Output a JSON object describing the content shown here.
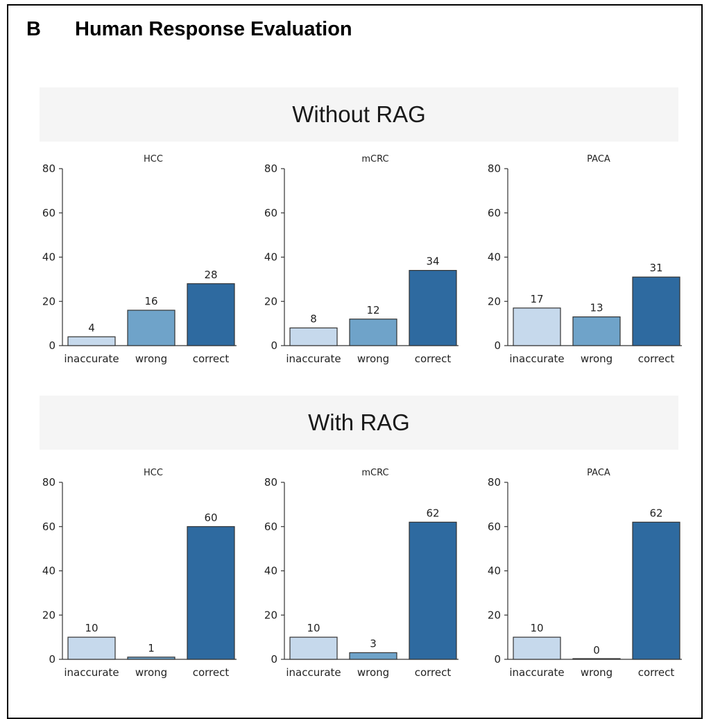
{
  "panel": {
    "letter": "B",
    "title": "Human Response Evaluation"
  },
  "sections": [
    {
      "label": "Without RAG"
    },
    {
      "label": "With RAG"
    }
  ],
  "colors": {
    "inaccurate": "#c6d9ec",
    "wrong": "#6fa3c9",
    "correct": "#2e6aa0",
    "band": "#f5f5f5"
  },
  "chart_data": [
    {
      "type": "bar",
      "section": "Without RAG",
      "title": "HCC",
      "categories": [
        "inaccurate",
        "wrong",
        "correct"
      ],
      "values": [
        4,
        16,
        28
      ],
      "ylim": [
        0,
        80
      ],
      "yticks": [
        0,
        20,
        40,
        60,
        80
      ]
    },
    {
      "type": "bar",
      "section": "Without RAG",
      "title": "mCRC",
      "categories": [
        "inaccurate",
        "wrong",
        "correct"
      ],
      "values": [
        8,
        12,
        34
      ],
      "ylim": [
        0,
        80
      ],
      "yticks": [
        0,
        20,
        40,
        60,
        80
      ]
    },
    {
      "type": "bar",
      "section": "Without RAG",
      "title": "PACA",
      "categories": [
        "inaccurate",
        "wrong",
        "correct"
      ],
      "values": [
        17,
        13,
        31
      ],
      "ylim": [
        0,
        80
      ],
      "yticks": [
        0,
        20,
        40,
        60,
        80
      ]
    },
    {
      "type": "bar",
      "section": "With RAG",
      "title": "HCC",
      "categories": [
        "inaccurate",
        "wrong",
        "correct"
      ],
      "values": [
        10,
        1,
        60
      ],
      "ylim": [
        0,
        80
      ],
      "yticks": [
        0,
        20,
        40,
        60,
        80
      ]
    },
    {
      "type": "bar",
      "section": "With RAG",
      "title": "mCRC",
      "categories": [
        "inaccurate",
        "wrong",
        "correct"
      ],
      "values": [
        10,
        3,
        62
      ],
      "ylim": [
        0,
        80
      ],
      "yticks": [
        0,
        20,
        40,
        60,
        80
      ]
    },
    {
      "type": "bar",
      "section": "With RAG",
      "title": "PACA",
      "categories": [
        "inaccurate",
        "wrong",
        "correct"
      ],
      "values": [
        10,
        0,
        62
      ],
      "ylim": [
        0,
        80
      ],
      "yticks": [
        0,
        20,
        40,
        60,
        80
      ]
    }
  ]
}
